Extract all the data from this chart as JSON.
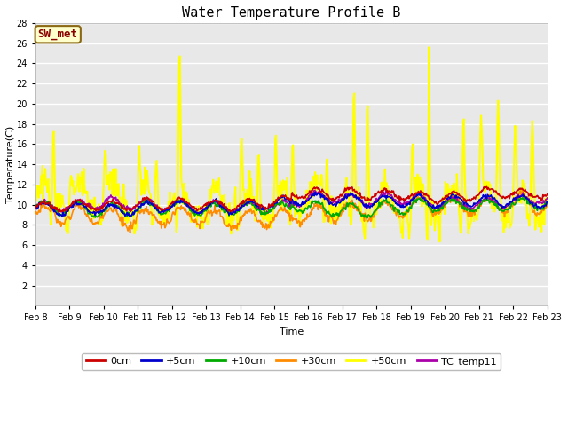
{
  "title": "Water Temperature Profile B",
  "xlabel": "Time",
  "ylabel": "Temperature(C)",
  "annotation_text": "SW_met",
  "annotation_color": "#8B0000",
  "annotation_bg": "#FFFFCC",
  "annotation_border": "#8B6914",
  "ylim": [
    0,
    28
  ],
  "yticks": [
    2,
    4,
    6,
    8,
    10,
    12,
    14,
    16,
    18,
    20,
    22,
    24,
    26,
    28
  ],
  "plot_bg": "#E8E8E8",
  "series": {
    "0cm": {
      "color": "#CC0000",
      "lw": 1.2
    },
    "+5cm": {
      "color": "#0000CC",
      "lw": 1.2
    },
    "+10cm": {
      "color": "#00AA00",
      "lw": 1.2
    },
    "+30cm": {
      "color": "#FF8C00",
      "lw": 1.2
    },
    "+50cm": {
      "color": "#FFFF00",
      "lw": 1.5
    },
    "TC_temp11": {
      "color": "#AA00AA",
      "lw": 1.2
    }
  },
  "n_days": 15,
  "start_day": 8,
  "points_per_day": 48,
  "grid_color": "white",
  "grid_lw": 1.0,
  "figsize": [
    6.4,
    4.8
  ],
  "dpi": 100
}
